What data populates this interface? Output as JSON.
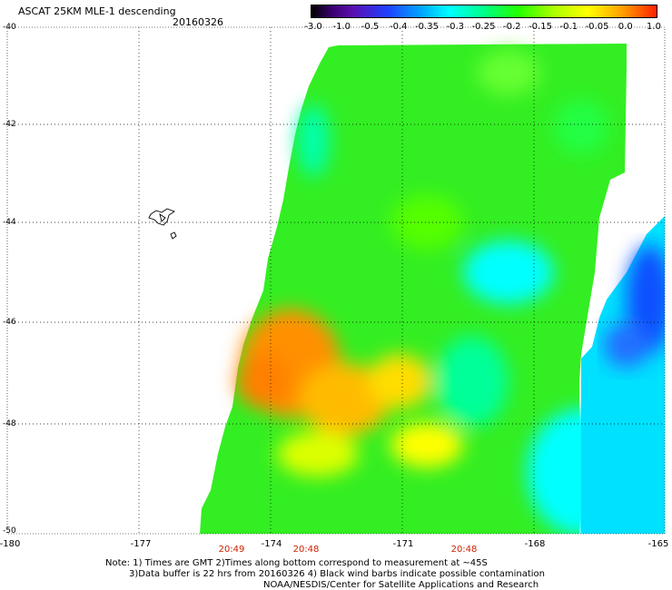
{
  "title": "ASCAT 25KM MLE-1 descending",
  "date": "20160326",
  "colorbar": {
    "labels": [
      "-3.0",
      "-1.0",
      "-0.5",
      "-0.4",
      "-0.35",
      "-0.3",
      "-0.25",
      "-0.2",
      "-0.15",
      "-0.1",
      "-0.05",
      "0.0",
      "1.0"
    ]
  },
  "latitude_labels": [
    "-40",
    "-42",
    "-44",
    "-46",
    "-48",
    "-50"
  ],
  "longitude_labels": [
    "-180",
    "-177",
    "-174",
    "-171",
    "-168",
    "-165"
  ],
  "time_labels": [
    "20:49",
    "20:48",
    "20:48"
  ],
  "notes": {
    "line1": "Note: 1) Times are GMT 2)Times along bottom correspond to measurement at ~45S",
    "line2": "3)Data buffer is 22 hrs from 20160326 4) Black wind barbs indicate possible contamination",
    "line3": "NOAA/NESDIS/Center for Satellite Applications and Research"
  },
  "map": {
    "lat_range": [
      -50,
      -40
    ],
    "lon_range": [
      -180,
      -165
    ],
    "grid": true,
    "island_name": "chatham-islands"
  }
}
